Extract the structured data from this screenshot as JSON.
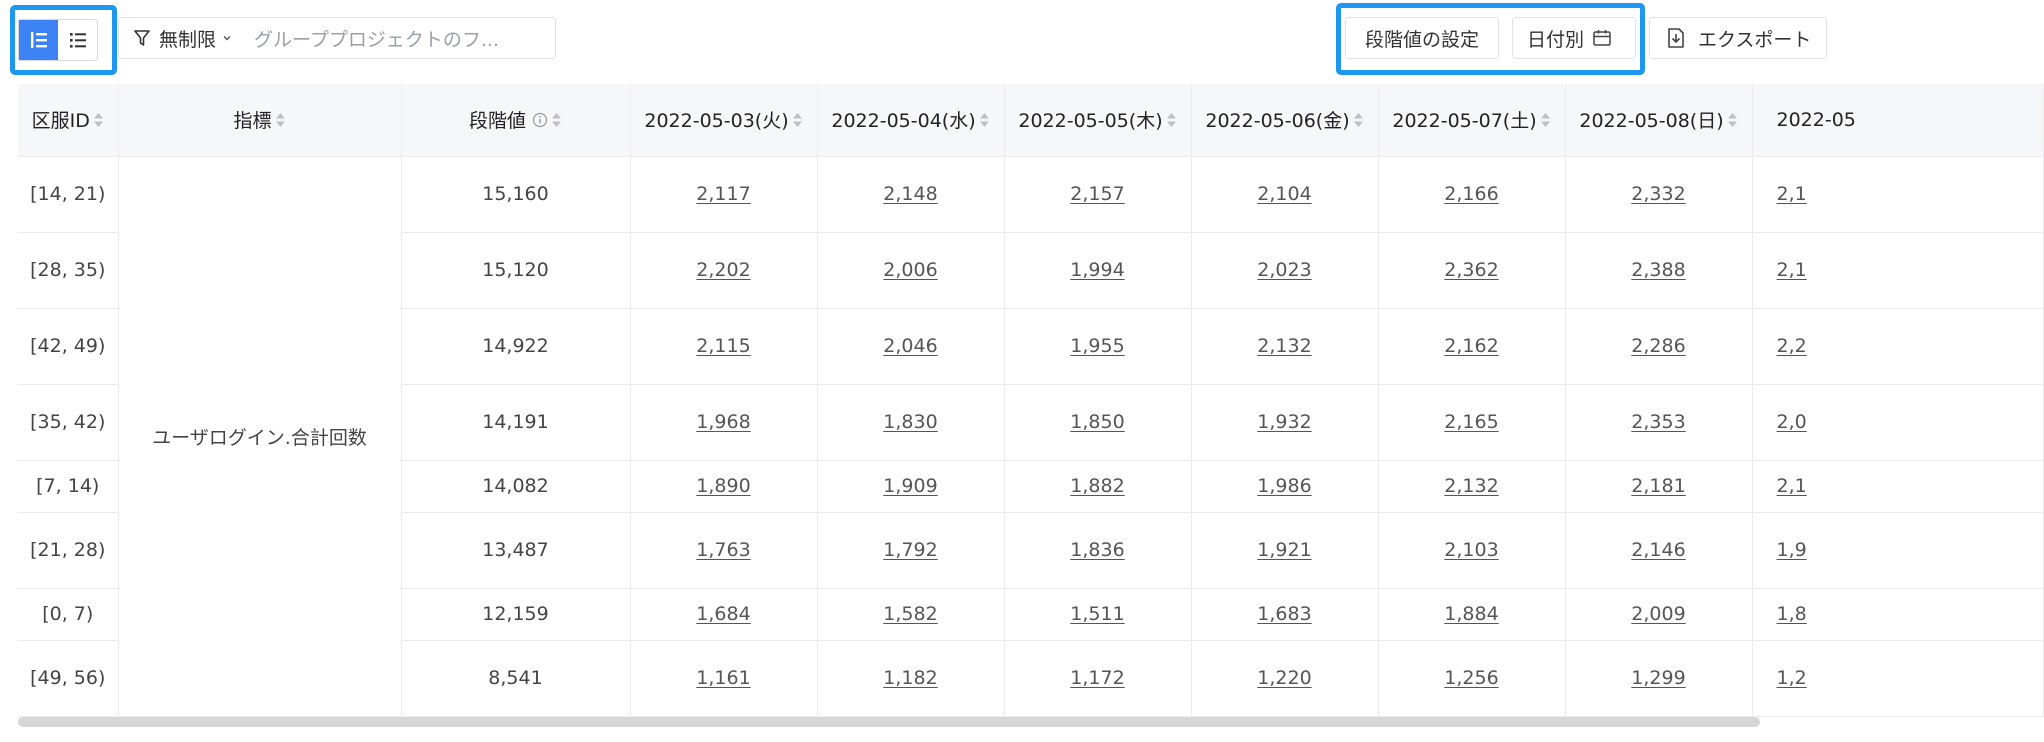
{
  "toolbar": {
    "filter": {
      "label": "無制限",
      "placeholder": "グループプロジェクトのフ..."
    },
    "stage_setting_label": "段階値の設定",
    "date_mode_label": "日付別",
    "export_label": "エクスポート",
    "accent_color": "#1e97f0",
    "active_toggle_color": "#3d82f3"
  },
  "table": {
    "headers": {
      "range_id": "区服ID",
      "metric": "指標",
      "stage": "段階値",
      "dates": [
        "2022-05-03(火)",
        "2022-05-04(水)",
        "2022-05-05(木)",
        "2022-05-06(金)",
        "2022-05-07(土)",
        "2022-05-08(日)",
        "2022-05"
      ]
    },
    "metric_name": "ユーザログイン.合計回数",
    "rows": [
      {
        "range": "[14, 21)",
        "stage": "15,160",
        "values": [
          "2,117",
          "2,148",
          "2,157",
          "2,104",
          "2,166",
          "2,332",
          "2,1"
        ]
      },
      {
        "range": "[28, 35)",
        "stage": "15,120",
        "values": [
          "2,202",
          "2,006",
          "1,994",
          "2,023",
          "2,362",
          "2,388",
          "2,1"
        ]
      },
      {
        "range": "[42, 49)",
        "stage": "14,922",
        "values": [
          "2,115",
          "2,046",
          "1,955",
          "2,132",
          "2,162",
          "2,286",
          "2,2"
        ]
      },
      {
        "range": "[35, 42)",
        "stage": "14,191",
        "values": [
          "1,968",
          "1,830",
          "1,850",
          "1,932",
          "2,165",
          "2,353",
          "2,0"
        ]
      },
      {
        "range": "[7, 14)",
        "stage": "14,082",
        "values": [
          "1,890",
          "1,909",
          "1,882",
          "1,986",
          "2,132",
          "2,181",
          "2,1"
        ]
      },
      {
        "range": "[21, 28)",
        "stage": "13,487",
        "values": [
          "1,763",
          "1,792",
          "1,836",
          "1,921",
          "2,103",
          "2,146",
          "1,9"
        ]
      },
      {
        "range": "[0, 7)",
        "stage": "12,159",
        "values": [
          "1,684",
          "1,582",
          "1,511",
          "1,683",
          "1,884",
          "2,009",
          "1,8"
        ]
      },
      {
        "range": "[49, 56)",
        "stage": "8,541",
        "values": [
          "1,161",
          "1,182",
          "1,172",
          "1,220",
          "1,256",
          "1,299",
          "1,2"
        ]
      }
    ]
  }
}
